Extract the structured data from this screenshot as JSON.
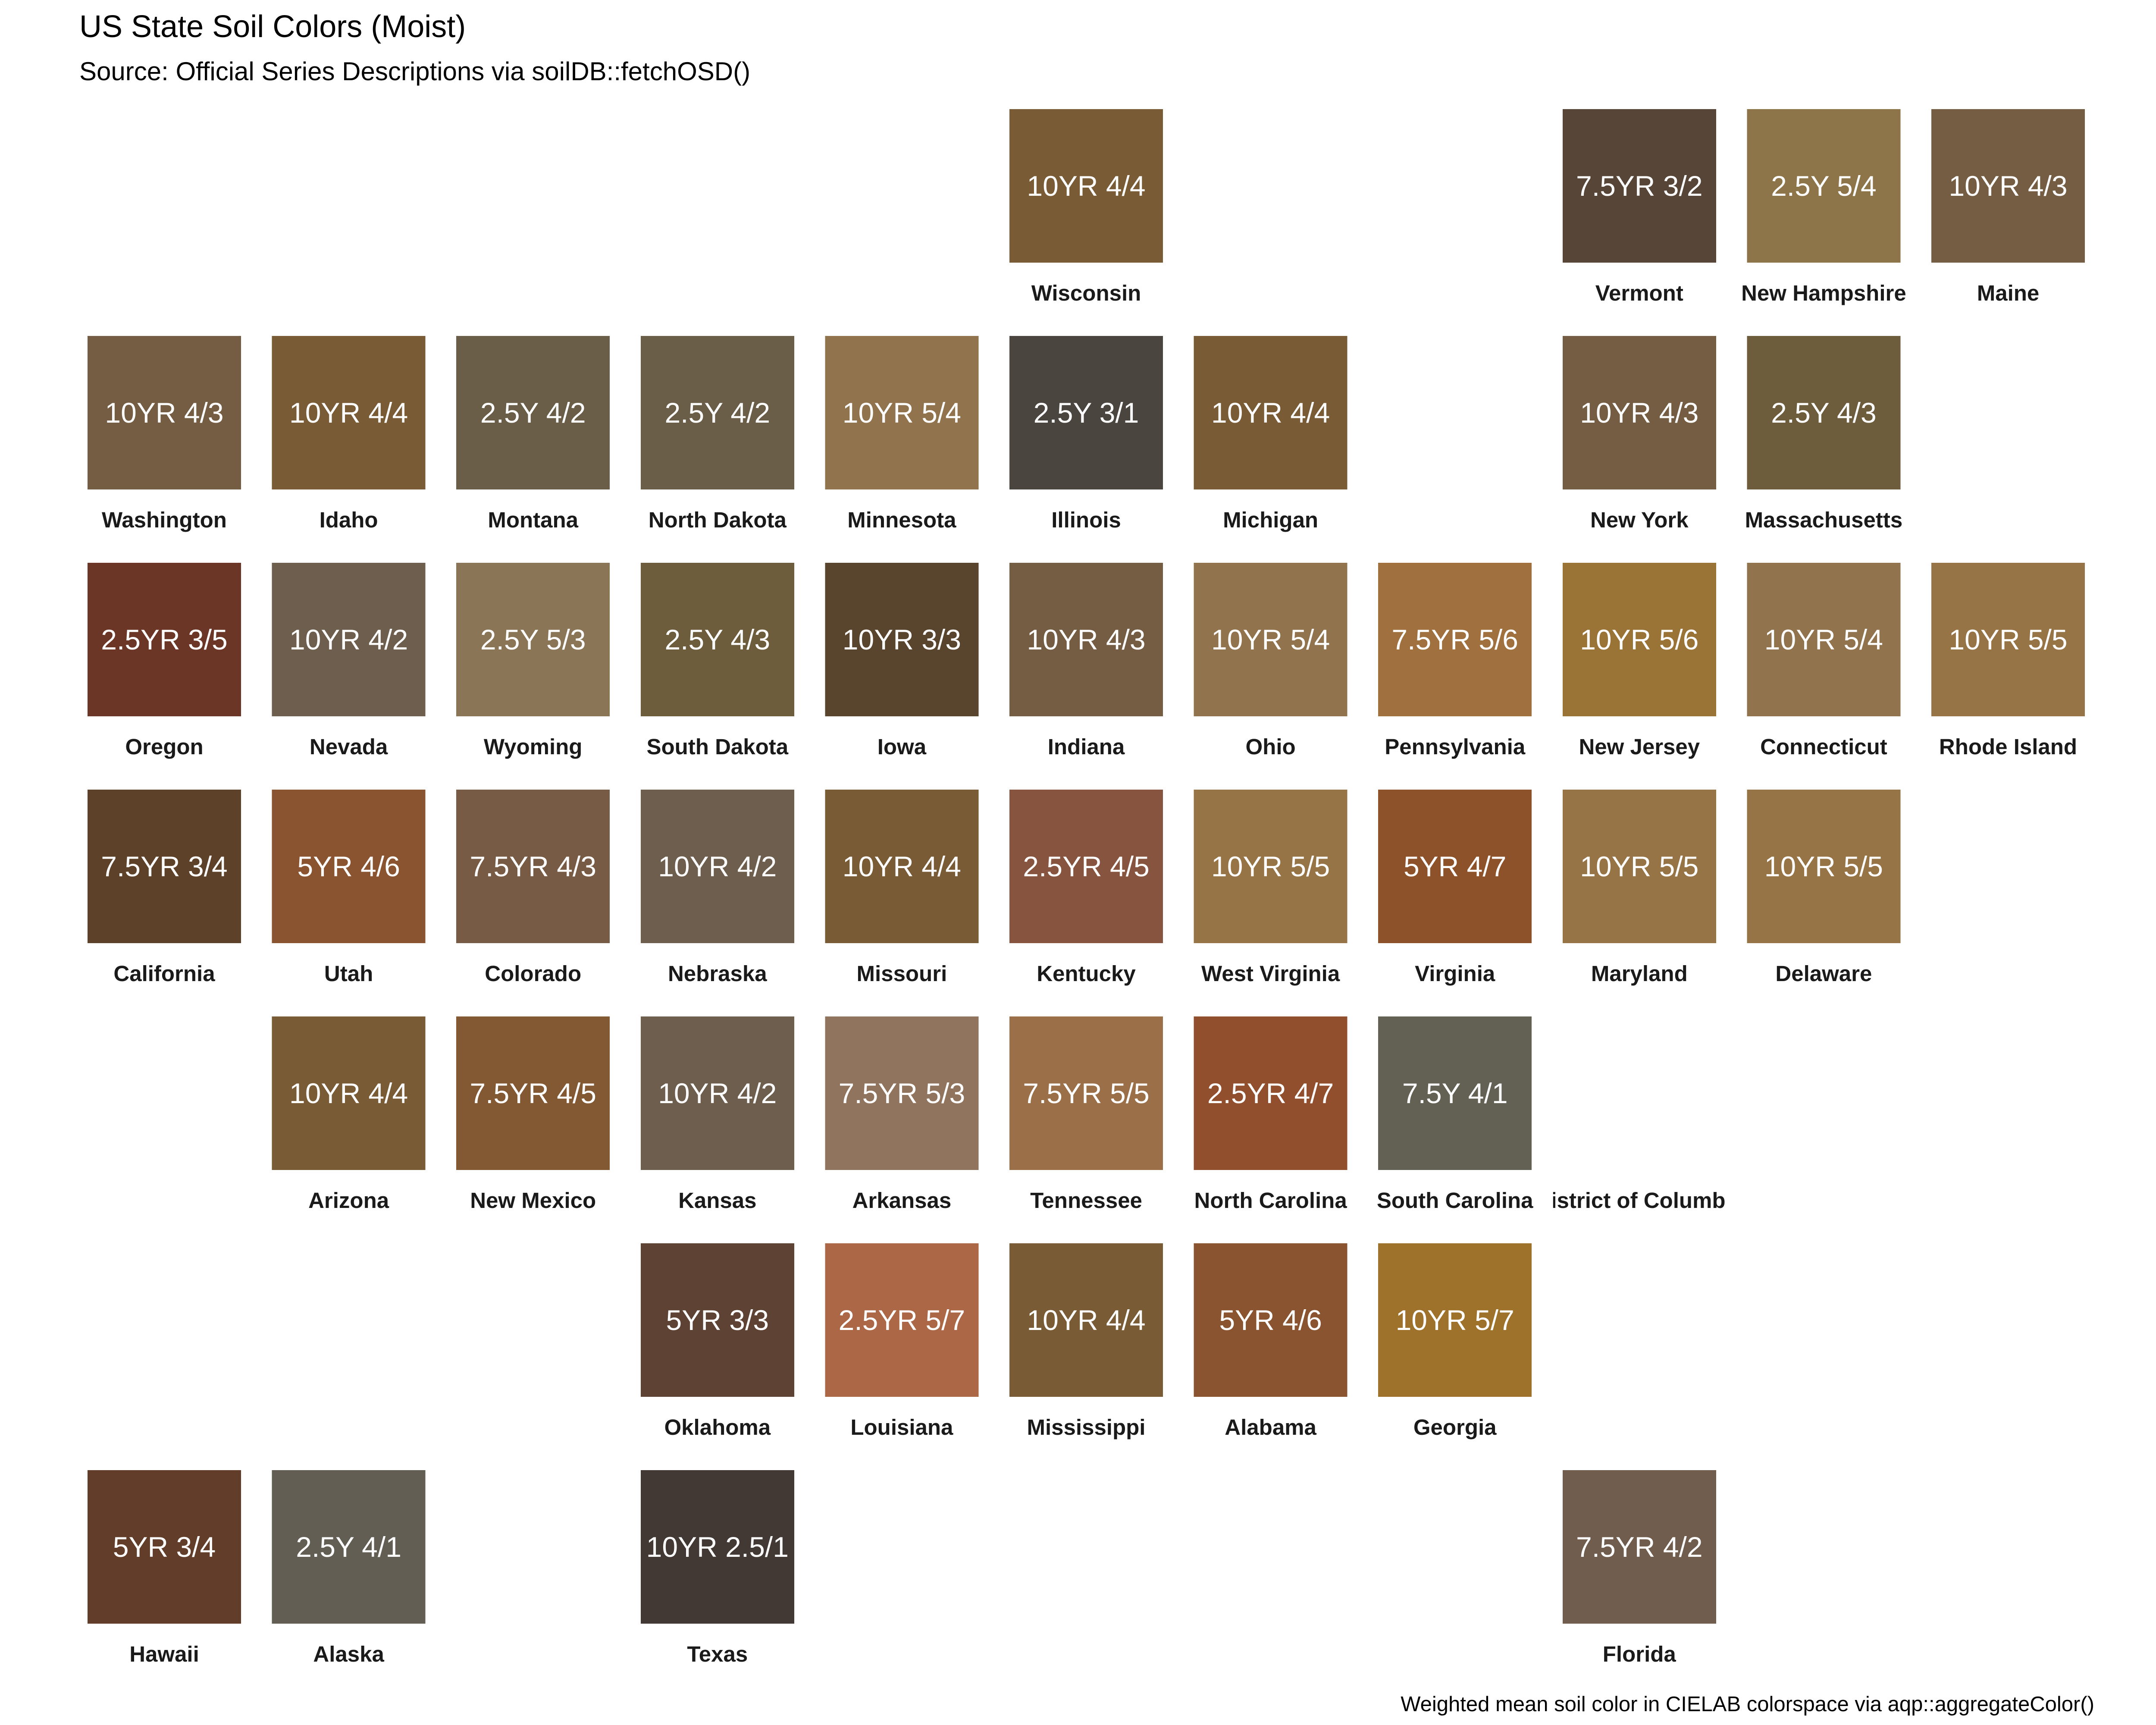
{
  "chart_data": {
    "type": "table",
    "title": "US State Soil Colors (Moist)",
    "subtitle": "Source: Official Series Descriptions via soilDB::fetchOSD()",
    "caption": "Weighted mean soil color in CIELAB colorspace via aqp::aggregateColor()",
    "columns": 11,
    "rows": 7,
    "tiles": [
      {
        "state": "Wisconsin",
        "munsell": "10YR 4/4",
        "color": "#795B35",
        "row": 1,
        "col": 6
      },
      {
        "state": "Vermont",
        "munsell": "7.5YR 3/2",
        "color": "#574537",
        "row": 1,
        "col": 9
      },
      {
        "state": "New Hampshire",
        "munsell": "2.5Y 5/4",
        "color": "#8D7549",
        "row": 1,
        "col": 10
      },
      {
        "state": "Maine",
        "munsell": "10YR 4/3",
        "color": "#745D42",
        "row": 1,
        "col": 11
      },
      {
        "state": "Washington",
        "munsell": "10YR 4/3",
        "color": "#745D42",
        "row": 2,
        "col": 1
      },
      {
        "state": "Idaho",
        "munsell": "10YR 4/4",
        "color": "#795B35",
        "row": 2,
        "col": 2
      },
      {
        "state": "Montana",
        "munsell": "2.5Y 4/2",
        "color": "#6A5E48",
        "row": 2,
        "col": 3
      },
      {
        "state": "North Dakota",
        "munsell": "2.5Y 4/2",
        "color": "#6A5E48",
        "row": 2,
        "col": 4
      },
      {
        "state": "Minnesota",
        "munsell": "10YR 5/4",
        "color": "#91744E",
        "row": 2,
        "col": 5
      },
      {
        "state": "Illinois",
        "munsell": "2.5Y 3/1",
        "color": "#4B4540",
        "row": 2,
        "col": 6
      },
      {
        "state": "Michigan",
        "munsell": "10YR 4/4",
        "color": "#795B35",
        "row": 2,
        "col": 7
      },
      {
        "state": "New York",
        "munsell": "10YR 4/3",
        "color": "#745D42",
        "row": 2,
        "col": 9
      },
      {
        "state": "Massachusetts",
        "munsell": "2.5Y 4/3",
        "color": "#6D5D3D",
        "row": 2,
        "col": 10
      },
      {
        "state": "Oregon",
        "munsell": "2.5YR 3/5",
        "color": "#6B3626",
        "row": 3,
        "col": 1
      },
      {
        "state": "Nevada",
        "munsell": "10YR 4/2",
        "color": "#6E5E4D",
        "row": 3,
        "col": 2
      },
      {
        "state": "Wyoming",
        "munsell": "2.5Y 5/3",
        "color": "#8A7657",
        "row": 3,
        "col": 3
      },
      {
        "state": "South Dakota",
        "munsell": "2.5Y 4/3",
        "color": "#6D5D3D",
        "row": 3,
        "col": 4
      },
      {
        "state": "Iowa",
        "munsell": "10YR 3/3",
        "color": "#59452D",
        "row": 3,
        "col": 5
      },
      {
        "state": "Indiana",
        "munsell": "10YR 4/3",
        "color": "#745D42",
        "row": 3,
        "col": 6
      },
      {
        "state": "Ohio",
        "munsell": "10YR 5/4",
        "color": "#91744E",
        "row": 3,
        "col": 7
      },
      {
        "state": "Pennsylvania",
        "munsell": "7.5YR 5/6",
        "color": "#A0703E",
        "row": 3,
        "col": 8
      },
      {
        "state": "New Jersey",
        "munsell": "10YR 5/6",
        "color": "#9A7436",
        "row": 3,
        "col": 9
      },
      {
        "state": "Connecticut",
        "munsell": "10YR 5/4",
        "color": "#91744E",
        "row": 3,
        "col": 10
      },
      {
        "state": "Rhode Island",
        "munsell": "10YR 5/5",
        "color": "#967445",
        "row": 3,
        "col": 11
      },
      {
        "state": "California",
        "munsell": "7.5YR 3/4",
        "color": "#5E4129",
        "row": 4,
        "col": 1
      },
      {
        "state": "Utah",
        "munsell": "5YR 4/6",
        "color": "#8A5431",
        "row": 4,
        "col": 2
      },
      {
        "state": "Colorado",
        "munsell": "7.5YR 4/3",
        "color": "#775B45",
        "row": 4,
        "col": 3
      },
      {
        "state": "Nebraska",
        "munsell": "10YR 4/2",
        "color": "#6E5E4D",
        "row": 4,
        "col": 4
      },
      {
        "state": "Missouri",
        "munsell": "10YR 4/4",
        "color": "#795B35",
        "row": 4,
        "col": 5
      },
      {
        "state": "Kentucky",
        "munsell": "2.5YR 4/5",
        "color": "#87553F",
        "row": 4,
        "col": 6
      },
      {
        "state": "West Virginia",
        "munsell": "10YR 5/5",
        "color": "#967445",
        "row": 4,
        "col": 7
      },
      {
        "state": "Virginia",
        "munsell": "5YR 4/7",
        "color": "#8D5229",
        "row": 4,
        "col": 8
      },
      {
        "state": "Maryland",
        "munsell": "10YR 5/5",
        "color": "#967445",
        "row": 4,
        "col": 9
      },
      {
        "state": "Delaware",
        "munsell": "10YR 5/5",
        "color": "#967445",
        "row": 4,
        "col": 10
      },
      {
        "state": "Arizona",
        "munsell": "10YR 4/4",
        "color": "#795B35",
        "row": 5,
        "col": 2
      },
      {
        "state": "New Mexico",
        "munsell": "7.5YR 4/5",
        "color": "#835934",
        "row": 5,
        "col": 3
      },
      {
        "state": "Kansas",
        "munsell": "10YR 4/2",
        "color": "#6E5E4D",
        "row": 5,
        "col": 4
      },
      {
        "state": "Arkansas",
        "munsell": "7.5YR 5/3",
        "color": "#91745E",
        "row": 5,
        "col": 5
      },
      {
        "state": "Tennessee",
        "munsell": "7.5YR 5/5",
        "color": "#9B7048",
        "row": 5,
        "col": 6
      },
      {
        "state": "North Carolina",
        "munsell": "2.5YR 4/7",
        "color": "#924F2E",
        "row": 5,
        "col": 7
      },
      {
        "state": "South Carolina",
        "munsell": "7.5Y 4/1",
        "color": "#636054",
        "row": 5,
        "col": 8
      },
      {
        "state": "District of Columbia",
        "munsell": "",
        "color": "#FFFFFF",
        "row": 5,
        "col": 9
      },
      {
        "state": "Oklahoma",
        "munsell": "5YR 3/3",
        "color": "#5E4233",
        "row": 6,
        "col": 4
      },
      {
        "state": "Louisiana",
        "munsell": "2.5YR 5/7",
        "color": "#AC6746",
        "row": 6,
        "col": 5
      },
      {
        "state": "Mississippi",
        "munsell": "10YR 4/4",
        "color": "#795B35",
        "row": 6,
        "col": 6
      },
      {
        "state": "Alabama",
        "munsell": "5YR 4/6",
        "color": "#8A5431",
        "row": 6,
        "col": 7
      },
      {
        "state": "Georgia",
        "munsell": "10YR 5/7",
        "color": "#9E722A",
        "row": 6,
        "col": 8
      },
      {
        "state": "Hawaii",
        "munsell": "5YR 3/4",
        "color": "#623E2A",
        "row": 7,
        "col": 1
      },
      {
        "state": "Alaska",
        "munsell": "2.5Y 4/1",
        "color": "#625E53",
        "row": 7,
        "col": 2
      },
      {
        "state": "Texas",
        "munsell": "10YR 2.5/1",
        "color": "#433934",
        "row": 7,
        "col": 4
      },
      {
        "state": "Florida",
        "munsell": "7.5YR 4/2",
        "color": "#705D4E",
        "row": 7,
        "col": 9
      }
    ]
  }
}
